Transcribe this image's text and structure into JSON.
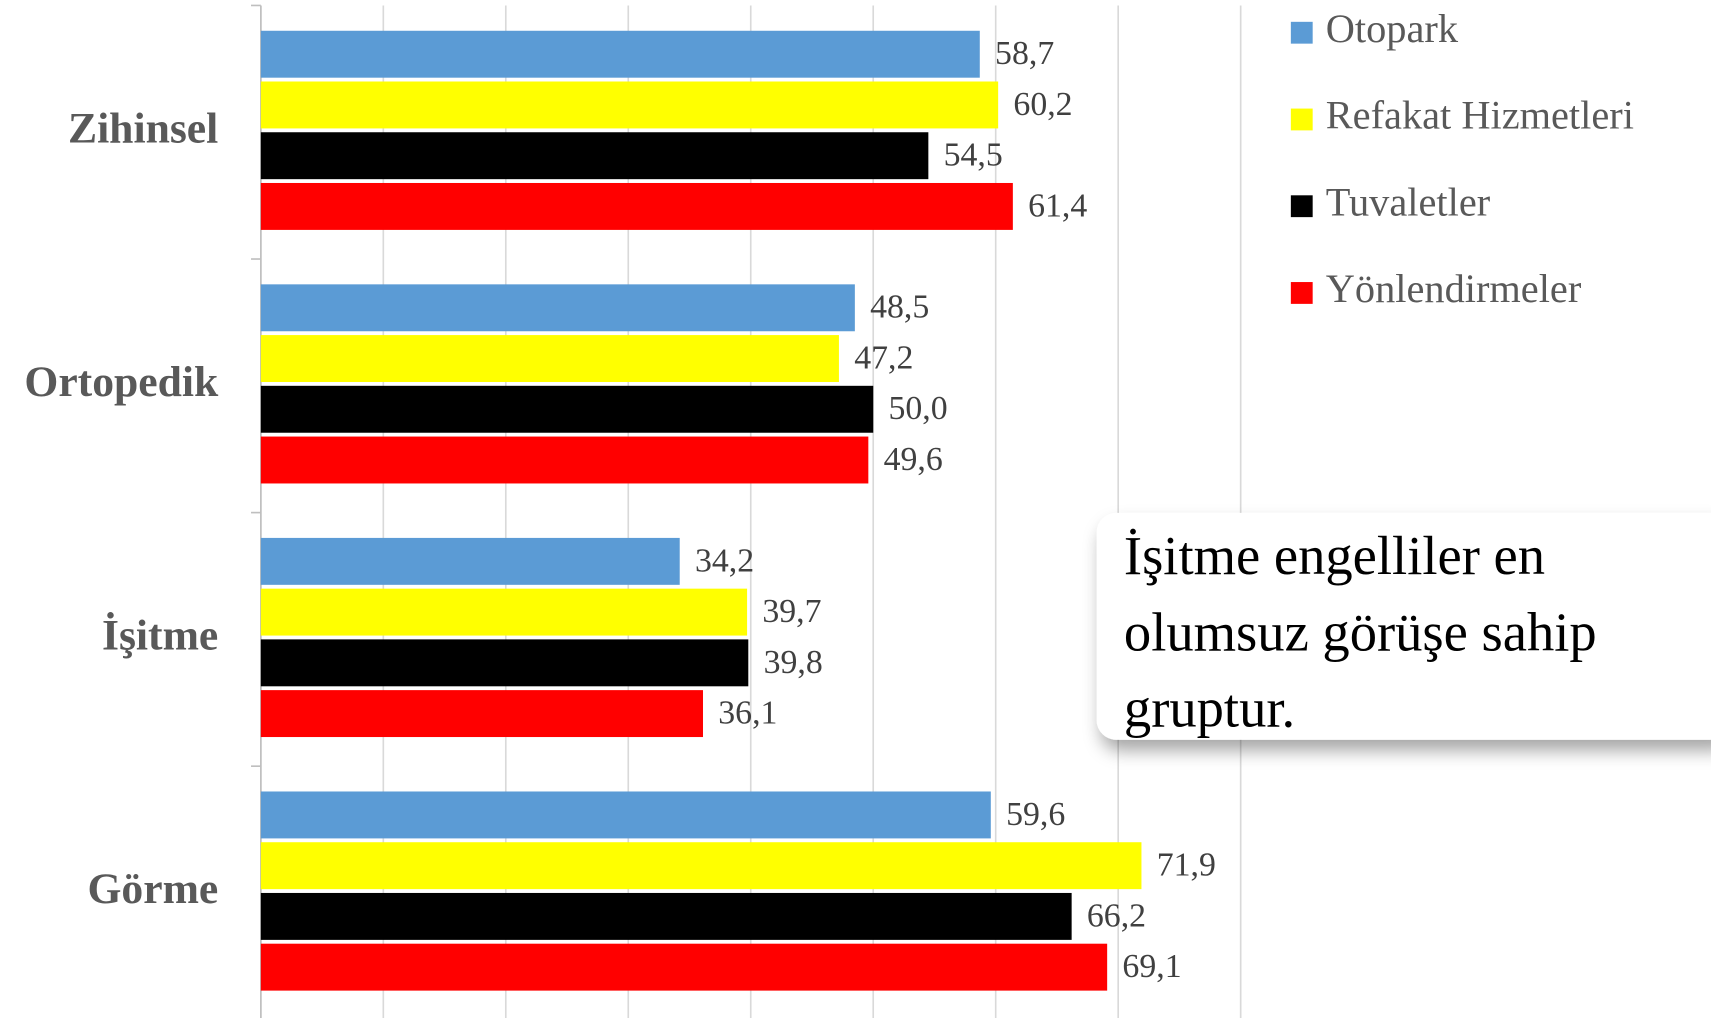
{
  "chart_data": {
    "type": "bar",
    "orientation": "horizontal",
    "categories": [
      "Zihinsel",
      "Ortopedik",
      "İşitme",
      "Görme"
    ],
    "series": [
      {
        "name": "Otopark",
        "color": "#5b9bd5",
        "values": [
          58.7,
          48.5,
          34.2,
          59.6
        ],
        "value_labels": [
          "58,7",
          "48,5",
          "34,2",
          "59,6"
        ]
      },
      {
        "name": "Refakat Hizmetleri",
        "color": "#ffff00",
        "values": [
          60.2,
          47.2,
          39.7,
          71.9
        ],
        "value_labels": [
          "60,2",
          "47,2",
          "39,7",
          "71,9"
        ]
      },
      {
        "name": "Tuvaletler",
        "color": "#000000",
        "values": [
          54.5,
          50.0,
          39.8,
          66.2
        ],
        "value_labels": [
          "54,5",
          "50,0",
          "39,8",
          "66,2"
        ]
      },
      {
        "name": "Yönlendirmeler",
        "color": "#ff0000",
        "values": [
          61.4,
          49.6,
          36.1,
          69.1
        ],
        "value_labels": [
          "61,4",
          "49,6",
          "36,1",
          "69,1"
        ]
      }
    ],
    "xlim": [
      0,
      80
    ],
    "xticks": [
      0,
      10,
      20,
      30,
      40,
      50,
      60,
      70,
      80
    ],
    "grid": true,
    "legend": "top-right",
    "annotation": "İşitme engelliler en olumsuz görüşe sahip gruptur."
  }
}
